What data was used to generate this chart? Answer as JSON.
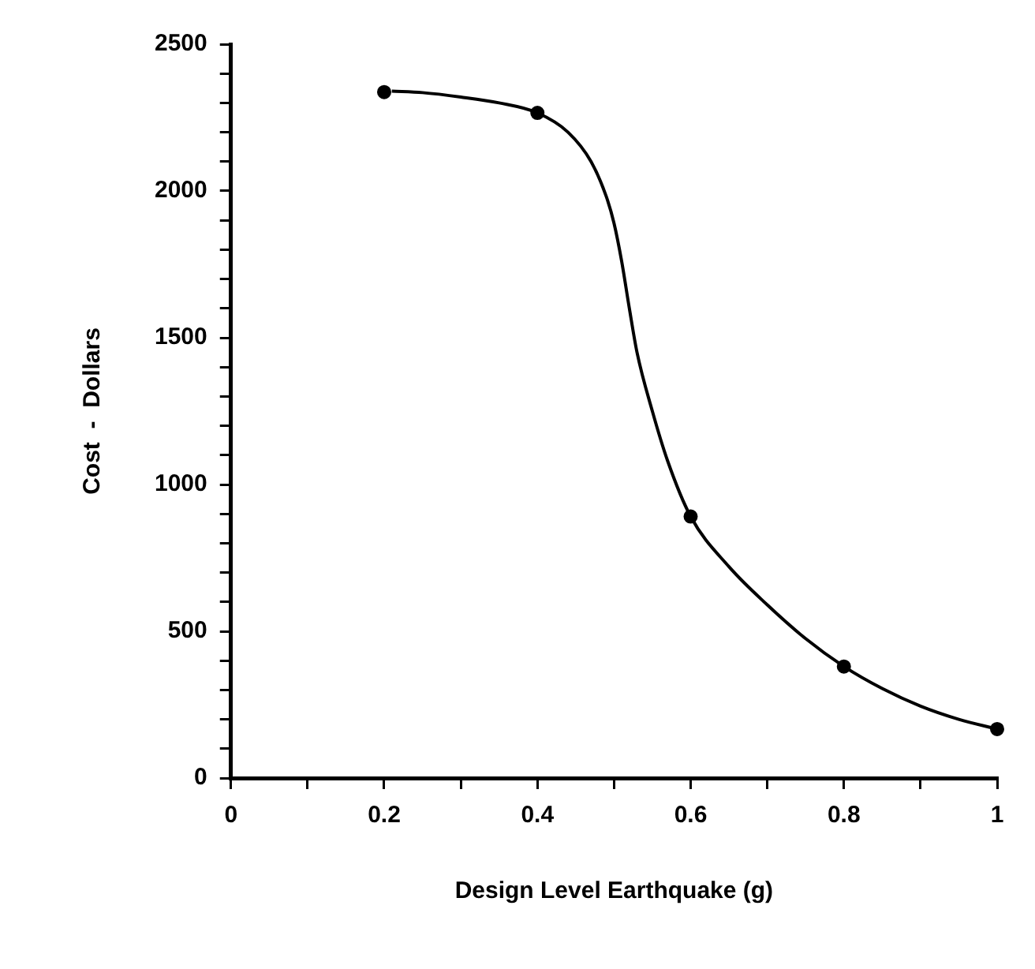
{
  "chart_data": {
    "type": "scatter",
    "xlabel": "Design Level Earthquake (g)",
    "ylabel": "Cost  -  Dollars",
    "xlim": [
      0,
      1
    ],
    "ylim": [
      0,
      2500
    ],
    "xticks": [
      0,
      {
        "value": 0.1,
        "label": null
      },
      0.2,
      {
        "value": 0.3,
        "label": null
      },
      0.4,
      {
        "value": 0.5,
        "label": null
      },
      0.6,
      {
        "value": 0.7,
        "label": null
      },
      0.8,
      {
        "value": 0.9,
        "label": null
      },
      1
    ],
    "yticks": [
      0,
      {
        "value": 100,
        "label": null
      },
      {
        "value": 200,
        "label": null
      },
      {
        "value": 300,
        "label": null
      },
      {
        "value": 400,
        "label": null
      },
      500,
      {
        "value": 600,
        "label": null
      },
      {
        "value": 700,
        "label": null
      },
      {
        "value": 800,
        "label": null
      },
      {
        "value": 900,
        "label": null
      },
      1000,
      {
        "value": 1100,
        "label": null
      },
      {
        "value": 1200,
        "label": null
      },
      {
        "value": 1300,
        "label": null
      },
      {
        "value": 1400,
        "label": null
      },
      1500,
      {
        "value": 1600,
        "label": null
      },
      {
        "value": 1700,
        "label": null
      },
      {
        "value": 1800,
        "label": null
      },
      {
        "value": 1900,
        "label": null
      },
      2000,
      {
        "value": 2100,
        "label": null
      },
      {
        "value": 2200,
        "label": null
      },
      {
        "value": 2300,
        "label": null
      },
      {
        "value": 2400,
        "label": null
      },
      2500
    ],
    "grid": false,
    "legend": false,
    "series": [
      {
        "type": "line",
        "color": "#000000",
        "marker": "none",
        "line_style": "solid",
        "x": [
          0.21,
          0.25,
          0.3,
          0.35,
          0.4,
          0.44,
          0.47,
          0.49,
          0.5,
          0.51,
          0.52,
          0.53,
          0.55,
          0.57,
          0.6,
          0.65,
          0.7,
          0.75,
          0.8,
          0.85,
          0.9,
          0.95,
          1.0
        ],
        "values": [
          2340,
          2335,
          2320,
          2300,
          2266,
          2200,
          2100,
          1980,
          1890,
          1760,
          1600,
          1450,
          1250,
          1080,
          891,
          720,
          590,
          475,
          380,
          305,
          245,
          200,
          167
        ]
      },
      {
        "color": "#000000",
        "marker": "circle",
        "x": [
          0.2,
          0.4,
          0.6,
          0.8,
          1.0
        ],
        "values": [
          2337,
          2266,
          891,
          380,
          167
        ]
      }
    ]
  }
}
